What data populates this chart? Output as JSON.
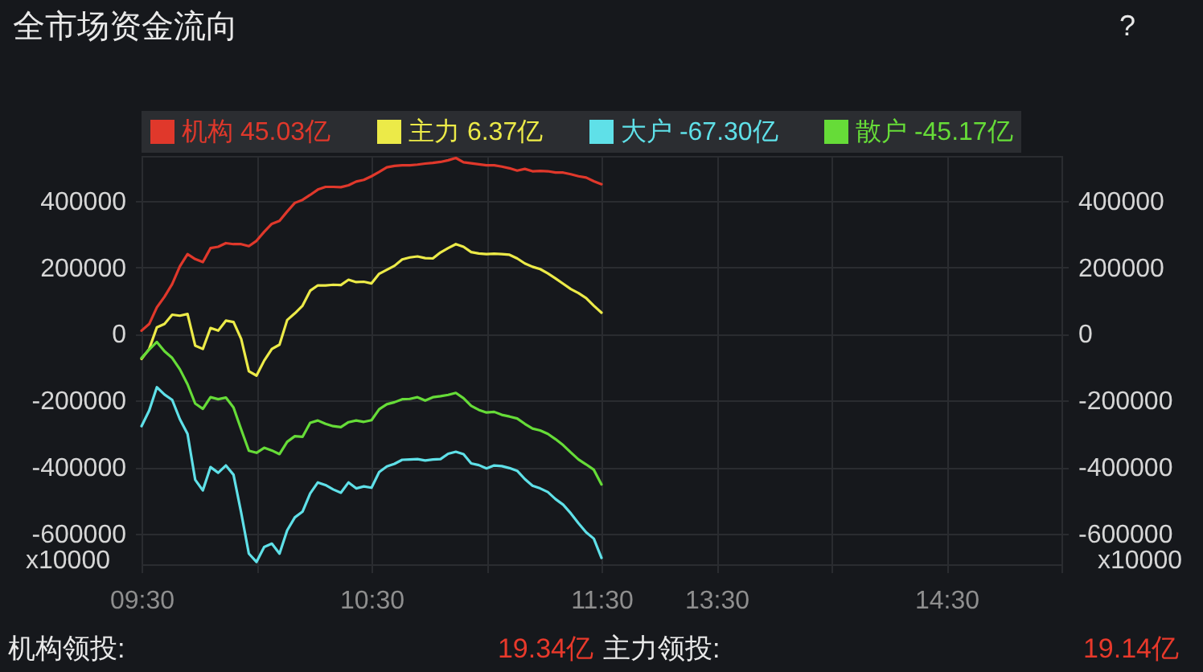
{
  "chart_data": {
    "type": "line",
    "title": "全市场资金流向",
    "ylabel": "x10000",
    "y2label": "x10000",
    "annotations": [
      "?",
      "机构领投:",
      "19.34亿",
      "主力领投:",
      "19.14亿"
    ],
    "categories": [
      "09:30",
      null,
      null,
      null,
      null,
      null,
      null,
      null,
      null,
      null,
      null,
      null,
      null,
      null,
      null,
      null,
      null,
      null,
      null,
      null,
      null,
      null,
      null,
      null,
      null,
      null,
      null,
      null,
      null,
      null,
      "10:30",
      null,
      null,
      null,
      null,
      null,
      null,
      null,
      null,
      null,
      null,
      null,
      null,
      null,
      null,
      null,
      null,
      null,
      null,
      null,
      null,
      null,
      null,
      null,
      null,
      null,
      null,
      null,
      null,
      null,
      "11:30",
      null,
      null,
      null,
      null,
      null,
      null,
      null,
      null,
      null,
      null,
      null,
      null,
      null,
      null,
      "13:30",
      null,
      null,
      null,
      null,
      null,
      null,
      null,
      null,
      null,
      null,
      null,
      null,
      null,
      null,
      null,
      null,
      null,
      null,
      null,
      null,
      null,
      null,
      null,
      null,
      null,
      null,
      null,
      null,
      null,
      "14:30",
      null,
      null,
      null,
      null,
      null,
      null,
      null,
      null,
      null,
      null,
      null,
      null,
      null,
      null,
      null
    ],
    "ylim": [
      -692000,
      535000
    ],
    "yticks": [
      -600000,
      -400000,
      -200000,
      0,
      200000,
      400000
    ],
    "y2lim": [
      -692000,
      535000
    ],
    "y2ticks": [
      -600000,
      -400000,
      -200000,
      0,
      200000,
      400000
    ],
    "grid": true,
    "legend": "top",
    "line_style": "solid",
    "series": [
      {
        "name": "机构 45.03亿",
        "color": "#e0382b",
        "values": [
          10000,
          30000,
          80000,
          112000,
          150000,
          203000,
          240000,
          225000,
          216000,
          258000,
          262000,
          273000,
          270000,
          270000,
          264000,
          280000,
          307000,
          331000,
          340000,
          368000,
          394000,
          403000,
          418000,
          434000,
          442000,
          442000,
          441000,
          447000,
          458000,
          463000,
          474000,
          487000,
          501000,
          505000,
          507000,
          507000,
          509000,
          512000,
          514000,
          517000,
          522000,
          529000,
          516000,
          513000,
          510000,
          507000,
          507000,
          503000,
          498000,
          491000,
          496000,
          489000,
          490000,
          489000,
          485000,
          485000,
          480000,
          474000,
          470000,
          459000,
          450000,
          null,
          null,
          null,
          null,
          null,
          null,
          null,
          null,
          null,
          null,
          null,
          null,
          null,
          null,
          null,
          null,
          null,
          null,
          null,
          null,
          null,
          null,
          null,
          null,
          null,
          null,
          null,
          null,
          null,
          null,
          null,
          null,
          null,
          null,
          null,
          null,
          null,
          null,
          null,
          null,
          null,
          null,
          null,
          null,
          null,
          null,
          null,
          null,
          null,
          null,
          null,
          null,
          null,
          null,
          null,
          null,
          null,
          null,
          null,
          null
        ]
      },
      {
        "name": "主力 6.37亿",
        "color": "#ecea48",
        "values": [
          -75000,
          -45000,
          20000,
          30000,
          58000,
          55000,
          60000,
          -35000,
          -45000,
          18000,
          10000,
          40000,
          36000,
          -15000,
          -112000,
          -125000,
          -80000,
          -45000,
          -32000,
          42000,
          62000,
          85000,
          130000,
          146000,
          146000,
          148000,
          147000,
          163000,
          156000,
          157000,
          152000,
          181000,
          193000,
          205000,
          224000,
          230000,
          233000,
          228000,
          227000,
          245000,
          258000,
          270000,
          262000,
          246000,
          242000,
          240000,
          241000,
          240000,
          238000,
          227000,
          212000,
          202000,
          195000,
          182000,
          167000,
          151000,
          135000,
          123000,
          108000,
          85000,
          64000,
          null,
          null,
          null,
          null,
          null,
          null,
          null,
          null,
          null,
          null,
          null,
          null,
          null,
          null,
          null,
          null,
          null,
          null,
          null,
          null,
          null,
          null,
          null,
          null,
          null,
          null,
          null,
          null,
          null,
          null,
          null,
          null,
          null,
          null,
          null,
          null,
          null,
          null,
          null,
          null,
          null,
          null,
          null,
          null,
          null,
          null,
          null,
          null,
          null,
          null,
          null,
          null,
          null,
          null,
          null,
          null,
          null,
          null,
          null,
          null
        ]
      },
      {
        "name": "大户 -67.30亿",
        "color": "#5fe0e8",
        "values": [
          -277000,
          -230000,
          -160000,
          -182000,
          -198000,
          -256000,
          -300000,
          -438000,
          -470000,
          -400000,
          -417000,
          -395000,
          -423000,
          -537000,
          -660000,
          -685000,
          -640000,
          -630000,
          -660000,
          -590000,
          -551000,
          -534000,
          -479000,
          -446000,
          -454000,
          -467000,
          -477000,
          -446000,
          -464000,
          -458000,
          -462000,
          -415000,
          -398000,
          -390000,
          -378000,
          -377000,
          -376000,
          -380000,
          -377000,
          -376000,
          -360000,
          -354000,
          -361000,
          -389000,
          -394000,
          -404000,
          -395000,
          -397000,
          -403000,
          -411000,
          -436000,
          -456000,
          -464000,
          -475000,
          -496000,
          -513000,
          -539000,
          -569000,
          -596000,
          -615000,
          -673000,
          null,
          null,
          null,
          null,
          null,
          null,
          null,
          null,
          null,
          null,
          null,
          null,
          null,
          null,
          null,
          null,
          null,
          null,
          null,
          null,
          null,
          null,
          null,
          null,
          null,
          null,
          null,
          null,
          null,
          null,
          null,
          null,
          null,
          null,
          null,
          null,
          null,
          null,
          null,
          null,
          null,
          null,
          null,
          null,
          null,
          null,
          null,
          null,
          null,
          null,
          null,
          null,
          null,
          null,
          null,
          null,
          null,
          null,
          null,
          null
        ]
      },
      {
        "name": "散户 -45.17亿",
        "color": "#66dc38",
        "values": [
          -72000,
          -47000,
          -24000,
          -52000,
          -72000,
          -106000,
          -151000,
          -209000,
          -225000,
          -190000,
          -196000,
          -191000,
          -221000,
          -287000,
          -351000,
          -357000,
          -342000,
          -350000,
          -361000,
          -324000,
          -307000,
          -309000,
          -267000,
          -260000,
          -270000,
          -277000,
          -280000,
          -265000,
          -260000,
          -264000,
          -259000,
          -226000,
          -211000,
          -205000,
          -196000,
          -195000,
          -190000,
          -200000,
          -190000,
          -187000,
          -183000,
          -177000,
          -193000,
          -216000,
          -228000,
          -236000,
          -234000,
          -243000,
          -248000,
          -254000,
          -270000,
          -284000,
          -290000,
          -300000,
          -316000,
          -334000,
          -356000,
          -377000,
          -392000,
          -408000,
          -452000,
          null,
          null,
          null,
          null,
          null,
          null,
          null,
          null,
          null,
          null,
          null,
          null,
          null,
          null,
          null,
          null,
          null,
          null,
          null,
          null,
          null,
          null,
          null,
          null,
          null,
          null,
          null,
          null,
          null,
          null,
          null,
          null,
          null,
          null,
          null,
          null,
          null,
          null,
          null,
          null,
          null,
          null,
          null,
          null,
          null,
          null,
          null,
          null,
          null,
          null,
          null,
          null,
          null,
          null,
          null,
          null,
          null,
          null,
          null,
          null
        ]
      }
    ]
  }
}
